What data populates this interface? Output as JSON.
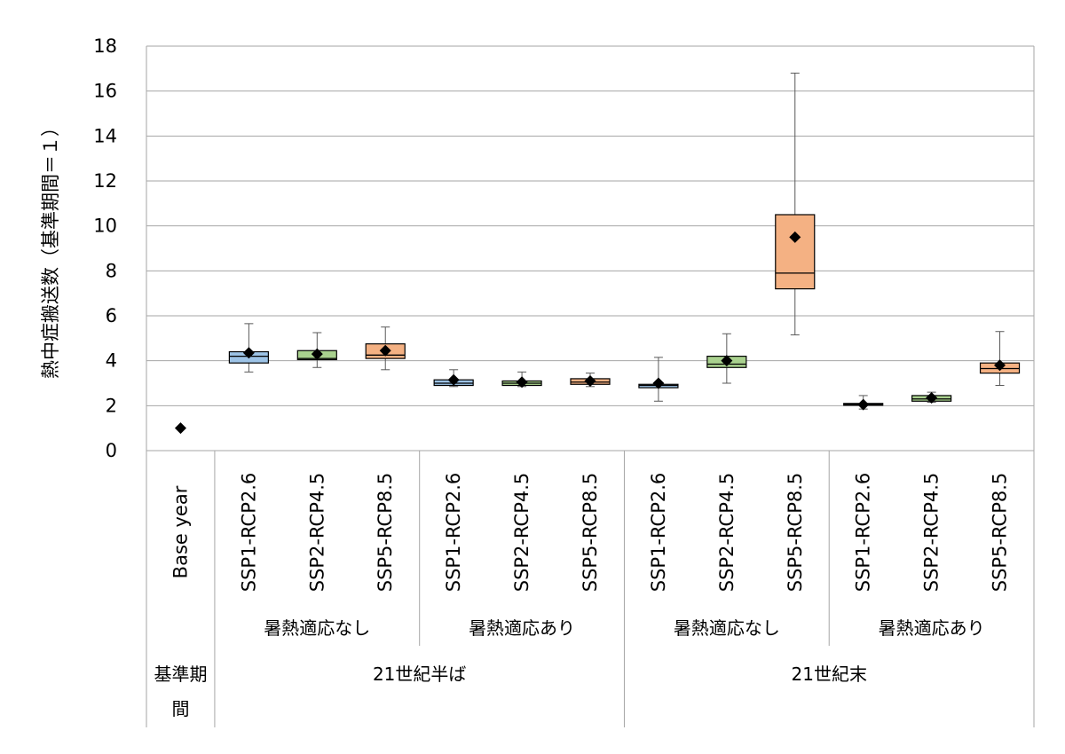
{
  "chart_data": {
    "type": "box",
    "ylabel": "熱中症搬送数（基準期間＝１）",
    "ylim": [
      0,
      18
    ],
    "yticks": [
      0,
      2,
      4,
      6,
      8,
      10,
      12,
      14,
      16,
      18
    ],
    "grid": true,
    "categories": [
      "Base year",
      "SSP1-RCP2.6",
      "SSP2-RCP4.5",
      "SSP5-RCP8.5",
      "SSP1-RCP2.6",
      "SSP2-RCP4.5",
      "SSP5-RCP8.5",
      "SSP1-RCP2.6",
      "SSP2-RCP4.5",
      "SSP5-RCP8.5",
      "SSP1-RCP2.6",
      "SSP2-RCP4.5",
      "SSP5-RCP8.5"
    ],
    "boxes": [
      null,
      {
        "min": 3.5,
        "q1": 3.9,
        "median": 4.2,
        "q3": 4.4,
        "max": 5.65,
        "color": "#9dc3e6"
      },
      {
        "min": 3.7,
        "q1": 4.05,
        "median": 4.1,
        "q3": 4.45,
        "max": 5.25,
        "color": "#a9d18e"
      },
      {
        "min": 3.6,
        "q1": 4.1,
        "median": 4.25,
        "q3": 4.75,
        "max": 5.5,
        "color": "#f4b183"
      },
      {
        "min": 2.85,
        "q1": 2.9,
        "median": 3.0,
        "q3": 3.15,
        "max": 3.6,
        "color": "#9dc3e6"
      },
      {
        "min": 2.85,
        "q1": 2.9,
        "median": 3.0,
        "q3": 3.1,
        "max": 3.5,
        "color": "#a9d18e"
      },
      {
        "min": 2.85,
        "q1": 2.95,
        "median": 3.05,
        "q3": 3.2,
        "max": 3.45,
        "color": "#f4b183"
      },
      {
        "min": 2.2,
        "q1": 2.8,
        "median": 2.9,
        "q3": 2.95,
        "max": 4.15,
        "color": "#9dc3e6"
      },
      {
        "min": 3.0,
        "q1": 3.7,
        "median": 3.85,
        "q3": 4.2,
        "max": 5.2,
        "color": "#a9d18e"
      },
      {
        "min": 5.15,
        "q1": 7.2,
        "median": 7.9,
        "q3": 10.5,
        "max": 16.8,
        "color": "#f4b183"
      },
      {
        "min": 1.85,
        "q1": 2.02,
        "median": 2.05,
        "q3": 2.1,
        "max": 2.45,
        "color": "#9dc3e6"
      },
      {
        "min": 2.15,
        "q1": 2.2,
        "median": 2.3,
        "q3": 2.45,
        "max": 2.6,
        "color": "#a9d18e"
      },
      {
        "min": 2.9,
        "q1": 3.45,
        "median": 3.65,
        "q3": 3.9,
        "max": 5.3,
        "color": "#f4b183"
      }
    ],
    "means": [
      1.0,
      4.35,
      4.3,
      4.45,
      3.15,
      3.05,
      3.1,
      3.0,
      4.0,
      9.5,
      2.05,
      2.35,
      3.8
    ],
    "adaptation_groups": [
      {
        "label": "暑熱適応なし"
      },
      {
        "label": "暑熱適応あり"
      },
      {
        "label": "暑熱適応なし"
      },
      {
        "label": "暑熱適応あり"
      }
    ],
    "period_groups": [
      {
        "label": "基準期間"
      },
      {
        "label": "21世紀半ば"
      },
      {
        "label": "21世紀末"
      }
    ]
  }
}
